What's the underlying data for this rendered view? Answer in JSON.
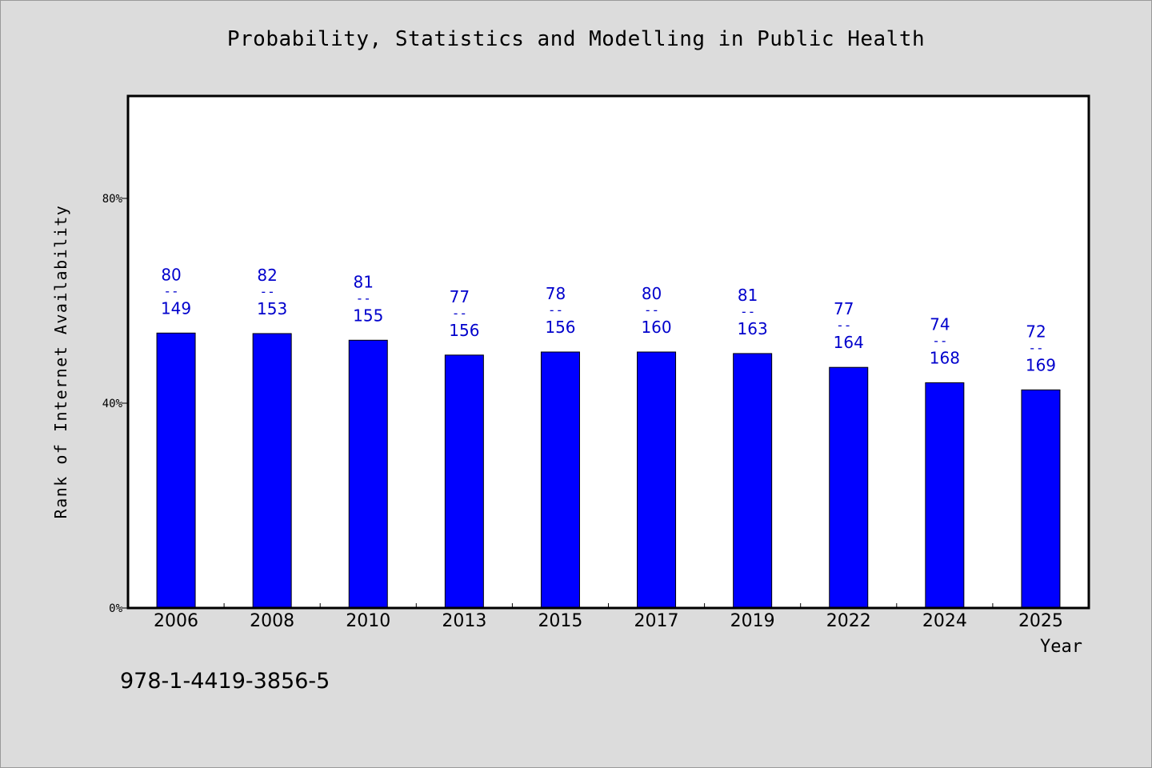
{
  "chart_data": {
    "type": "bar",
    "title": "Probability, Statistics and Modelling in Public Health",
    "xlabel": "Year",
    "ylabel": "Rank of Internet Availability",
    "categories": [
      "2006",
      "2008",
      "2010",
      "2013",
      "2015",
      "2017",
      "2019",
      "2022",
      "2024",
      "2025"
    ],
    "values": [
      53.7,
      53.6,
      52.3,
      49.4,
      50.0,
      50.0,
      49.7,
      47.0,
      44.0,
      42.6
    ],
    "value_unit": "%",
    "bar_labels": [
      {
        "top": "80",
        "sep": "--",
        "bottom": "149"
      },
      {
        "top": "82",
        "sep": "--",
        "bottom": "153"
      },
      {
        "top": "81",
        "sep": "--",
        "bottom": "155"
      },
      {
        "top": "77",
        "sep": "--",
        "bottom": "156"
      },
      {
        "top": "78",
        "sep": "--",
        "bottom": "156"
      },
      {
        "top": "80",
        "sep": "--",
        "bottom": "160"
      },
      {
        "top": "81",
        "sep": "--",
        "bottom": "163"
      },
      {
        "top": "77",
        "sep": "--",
        "bottom": "164"
      },
      {
        "top": "74",
        "sep": "--",
        "bottom": "168"
      },
      {
        "top": "72",
        "sep": "--",
        "bottom": "169"
      }
    ],
    "ylim": [
      0,
      100
    ],
    "yticks": [
      0,
      40,
      80
    ],
    "ytick_labels": [
      "0%",
      "40%",
      "80%"
    ],
    "grid": false,
    "legend": "none"
  },
  "footer_text": "978-1-4419-3856-5",
  "colors": {
    "bar_fill": "#0000ff",
    "bar_stroke": "#000000",
    "label_text": "#0000cc",
    "plot_background": "#ffffff",
    "page_background": "#dcdcdc"
  }
}
